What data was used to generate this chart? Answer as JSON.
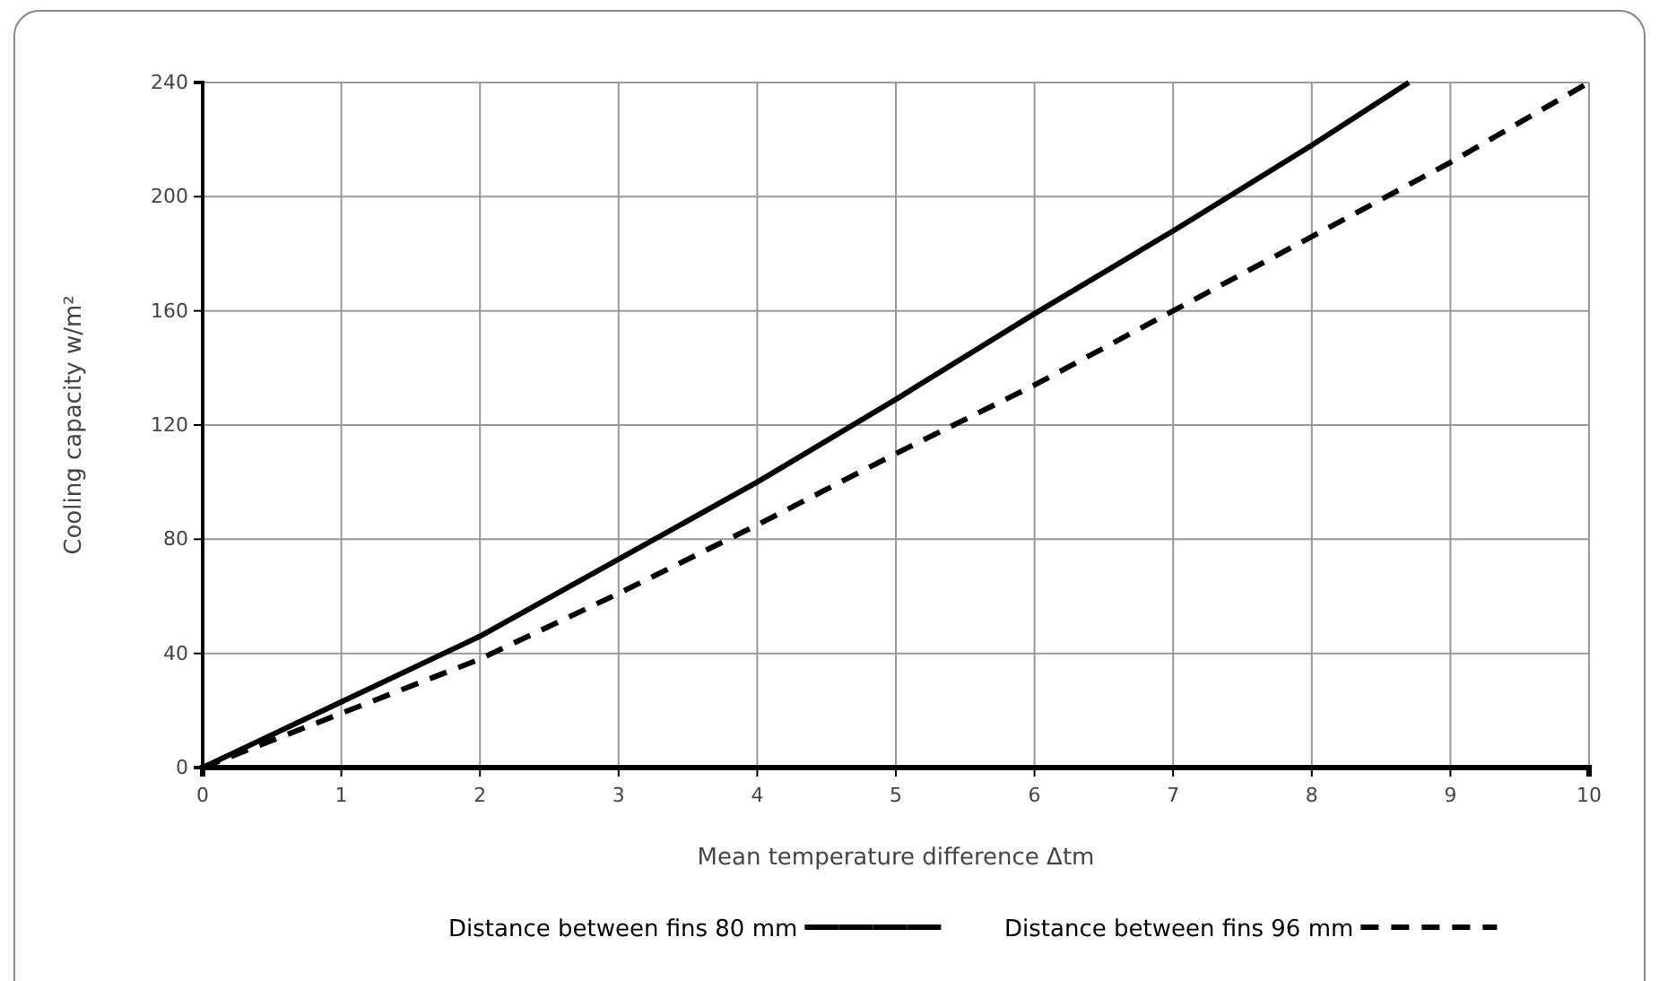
{
  "chart_data": {
    "type": "line",
    "xlabel": "Mean temperature difference Δtm",
    "ylabel": "Cooling capacity w/m²",
    "xlim": [
      0,
      10
    ],
    "xticks": [
      0,
      1,
      2,
      3,
      4,
      5,
      6,
      7,
      8,
      9,
      10
    ],
    "ylim": [
      0,
      240
    ],
    "yticks": [
      0,
      40,
      80,
      120,
      160,
      200,
      240
    ],
    "grid": true,
    "legend": "bottom",
    "series": [
      {
        "name": "Distance between fins 80 mm",
        "color": "#000000",
        "line_style": "solid",
        "x": [
          0,
          1,
          2,
          3,
          4,
          5,
          6,
          7,
          8,
          8.7
        ],
        "values": [
          0,
          23,
          46,
          73,
          100,
          129,
          159,
          188,
          218,
          240
        ]
      },
      {
        "name": "Distance between fins 96 mm",
        "color": "#000000",
        "line_style": "dashed",
        "x": [
          0,
          1,
          2,
          3,
          4,
          5,
          6,
          7,
          8,
          9,
          10
        ],
        "values": [
          0,
          19,
          38,
          61,
          85,
          110,
          134,
          160,
          186,
          212,
          240
        ]
      }
    ]
  }
}
